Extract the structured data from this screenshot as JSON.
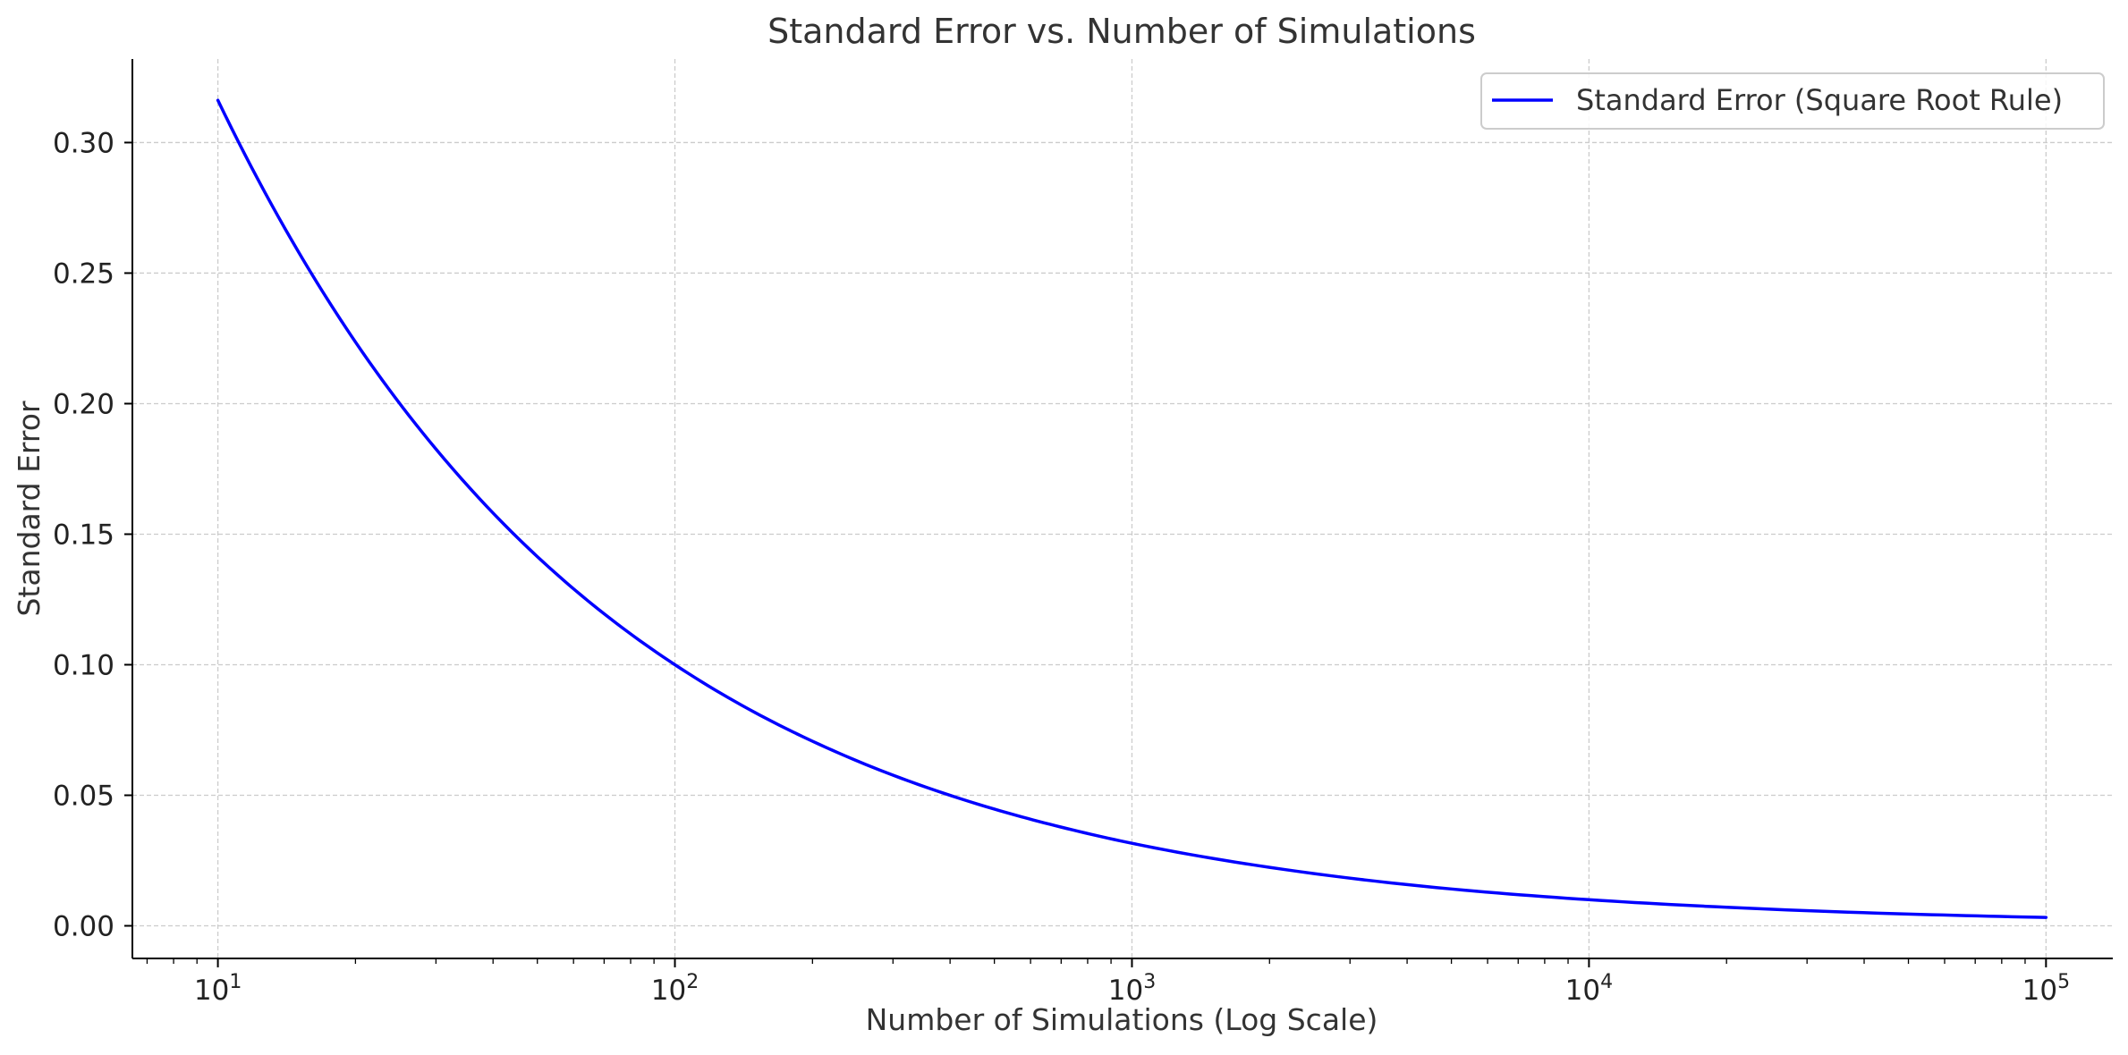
{
  "chart_data": {
    "type": "line",
    "title": "Standard Error vs. Number of Simulations",
    "xlabel": "Number of Simulations (Log Scale)",
    "ylabel": "Standard Error",
    "x_scale": "log",
    "xlim": [
      6.5,
      140000
    ],
    "ylim": [
      -0.0125,
      0.332
    ],
    "x_ticks": [
      {
        "value": 10,
        "base": "10",
        "exp": "1"
      },
      {
        "value": 100,
        "base": "10",
        "exp": "2"
      },
      {
        "value": 1000,
        "base": "10",
        "exp": "3"
      },
      {
        "value": 10000,
        "base": "10",
        "exp": "4"
      },
      {
        "value": 100000,
        "base": "10",
        "exp": "5"
      }
    ],
    "y_ticks": [
      "0.00",
      "0.05",
      "0.10",
      "0.15",
      "0.20",
      "0.25",
      "0.30"
    ],
    "grid": true,
    "legend_position": "top-right",
    "series": [
      {
        "name": "Standard Error (Square Root Rule)",
        "color": "#0000ff",
        "x": [
          10,
          15,
          20,
          30,
          50,
          70,
          100,
          150,
          200,
          300,
          500,
          700,
          1000,
          2000,
          5000,
          10000,
          20000,
          50000,
          100000
        ],
        "y": [
          0.3162,
          0.2582,
          0.2236,
          0.1826,
          0.1414,
          0.1195,
          0.1,
          0.0816,
          0.0707,
          0.0577,
          0.0447,
          0.0378,
          0.0316,
          0.0224,
          0.0141,
          0.01,
          0.0071,
          0.0045,
          0.0032
        ]
      }
    ]
  }
}
